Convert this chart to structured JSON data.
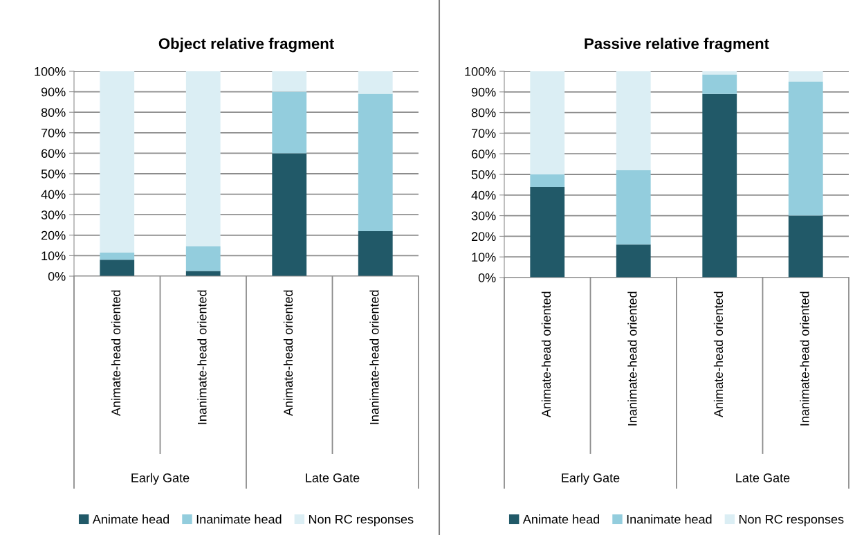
{
  "chart_data": [
    {
      "type": "bar",
      "title": "Object relative fragment",
      "stacked": true,
      "categories": [
        "Animate-head oriented",
        "Inanimate-head oriented",
        "Animate-head oriented",
        "Inanimate-head oriented"
      ],
      "series": [
        {
          "name": "Animate head",
          "color": "#215968",
          "values": [
            8,
            2.5,
            60,
            22
          ]
        },
        {
          "name": "Inanimate head",
          "color": "#93cddd",
          "values": [
            3.5,
            12,
            30,
            67
          ]
        },
        {
          "name": "Non RC responses",
          "color": "#dbeef4",
          "values": [
            88.5,
            85.5,
            10,
            11
          ]
        }
      ],
      "ylim": [
        0,
        100
      ],
      "yticks": [
        {
          "value": 0,
          "label": "0%"
        },
        {
          "value": 10,
          "label": "10%"
        },
        {
          "value": 20,
          "label": "20%"
        },
        {
          "value": 30,
          "label": "30%"
        },
        {
          "value": 40,
          "label": "40%"
        },
        {
          "value": 50,
          "label": "50%"
        },
        {
          "value": 60,
          "label": "60%"
        },
        {
          "value": 70,
          "label": "70%"
        },
        {
          "value": 80,
          "label": "80%"
        },
        {
          "value": 90,
          "label": "90%"
        },
        {
          "value": 100,
          "label": "100%"
        }
      ],
      "grid": "y",
      "legend": "bottom",
      "annotations": [
        "Early Gate",
        "Late Gate"
      ]
    },
    {
      "type": "bar",
      "title": "Passive relative fragment",
      "stacked": true,
      "categories": [
        "Animate-head oriented",
        "Inanimate-head oriented",
        "Animate-head oriented",
        "Inanimate-head oriented"
      ],
      "series": [
        {
          "name": "Animate head",
          "color": "#215968",
          "values": [
            44,
            16,
            89,
            30
          ]
        },
        {
          "name": "Inanimate head",
          "color": "#93cddd",
          "values": [
            6,
            36,
            9.5,
            65
          ]
        },
        {
          "name": "Non RC responses",
          "color": "#dbeef4",
          "values": [
            50,
            48,
            1.5,
            5
          ]
        }
      ],
      "ylim": [
        0,
        100
      ],
      "yticks": [
        {
          "value": 0,
          "label": "0%"
        },
        {
          "value": 10,
          "label": "10%"
        },
        {
          "value": 20,
          "label": "20%"
        },
        {
          "value": 30,
          "label": "30%"
        },
        {
          "value": 40,
          "label": "40%"
        },
        {
          "value": 50,
          "label": "50%"
        },
        {
          "value": 60,
          "label": "60%"
        },
        {
          "value": 70,
          "label": "70%"
        },
        {
          "value": 80,
          "label": "80%"
        },
        {
          "value": 90,
          "label": "90%"
        },
        {
          "value": 100,
          "label": "100%"
        }
      ],
      "grid": "y",
      "legend": "bottom",
      "annotations": [
        "Early Gate",
        "Late Gate"
      ]
    }
  ]
}
